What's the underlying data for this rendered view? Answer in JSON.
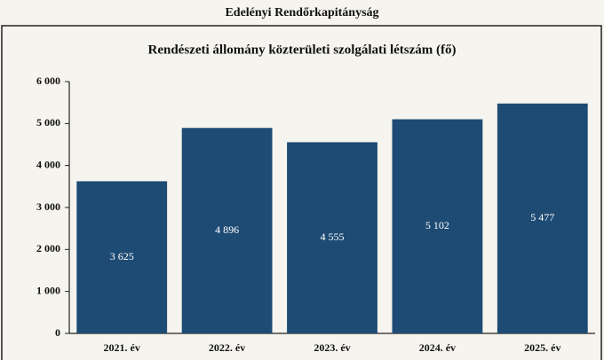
{
  "chart_data": {
    "type": "bar",
    "header": "Edelényi Rendőrkapitányság",
    "title": "Rendészeti állomány közterületi szolgálati létszám (fő)",
    "categories": [
      "2021. év",
      "2022. év",
      "2023. év",
      "2024. év",
      "2025. év"
    ],
    "values": [
      3625,
      4896,
      4555,
      5102,
      5477
    ],
    "value_labels": [
      "3 625",
      "4 896",
      "4 555",
      "5 102",
      "5 477"
    ],
    "color": "#1e4b74",
    "ylim": [
      0,
      6000
    ],
    "yticks": [
      0,
      {
        "value": 1000,
        "label": "1 000"
      },
      {
        "value": 2000,
        "label": "2 000"
      },
      {
        "value": 3000,
        "label": "3 000"
      },
      {
        "value": 4000,
        "label": "4 000"
      },
      {
        "value": 5000,
        "label": "5 000"
      },
      {
        "value": 6000,
        "label": "6 000"
      }
    ],
    "grid": false
  }
}
